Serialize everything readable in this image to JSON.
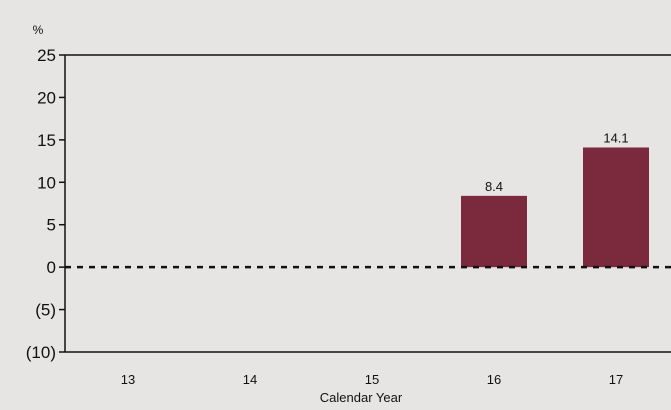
{
  "chart_data": {
    "type": "bar",
    "unit_label": "%",
    "xlabel": "Calendar Year",
    "categories": [
      "13",
      "14",
      "15",
      "16",
      "17"
    ],
    "values": [
      null,
      null,
      null,
      8.4,
      14.1
    ],
    "data_labels": [
      "",
      "",
      "",
      "8.4",
      "14.1"
    ],
    "ylim": [
      -10,
      25
    ],
    "y_ticks": [
      25,
      20,
      15,
      10,
      5,
      0,
      -5,
      -10
    ],
    "y_tick_labels": [
      "25",
      "20",
      "15",
      "10",
      "5",
      "0",
      "(5)",
      "(10)"
    ],
    "zero_line_dashed": true,
    "grid": false,
    "colors": {
      "bar": "#7a2a3c",
      "background": "#e6e5e4",
      "axis": "#111111"
    }
  }
}
